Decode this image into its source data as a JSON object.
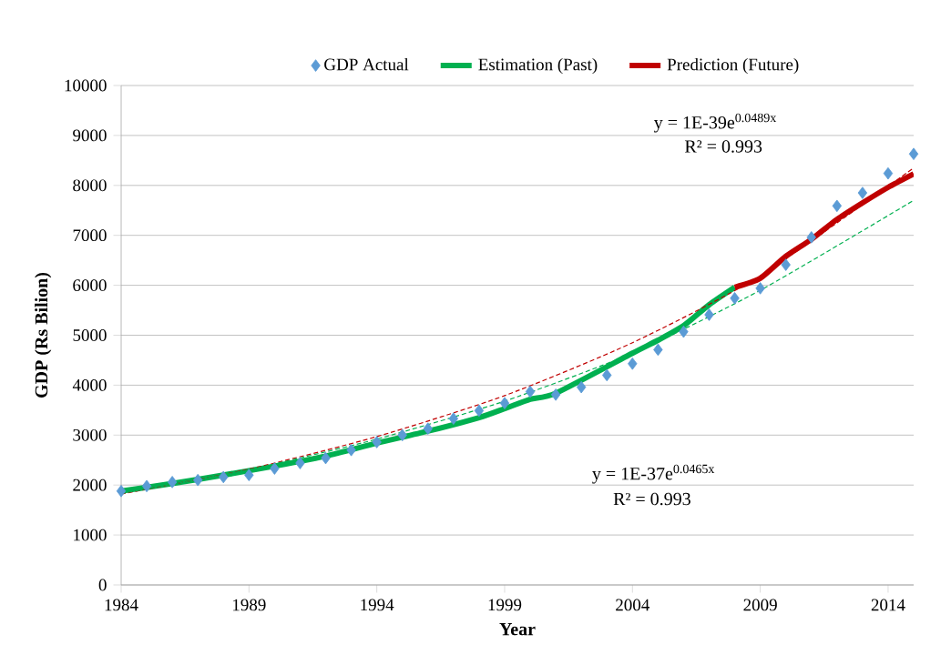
{
  "chart_data": {
    "type": "line",
    "xlabel": "Year",
    "ylabel": "GDP (Rs Bilion)",
    "x": [
      1984,
      1985,
      1986,
      1987,
      1988,
      1989,
      1990,
      1991,
      1992,
      1993,
      1994,
      1995,
      1996,
      1997,
      1998,
      1999,
      2000,
      2001,
      2002,
      2003,
      2004,
      2005,
      2006,
      2007,
      2008,
      2009,
      2010,
      2011,
      2012,
      2013,
      2014,
      2015
    ],
    "series": [
      {
        "name": "GDP Actual",
        "type": "scatter",
        "marker": "diamond",
        "color": "#5b9bd5",
        "values": [
          1880,
          1980,
          2060,
          2100,
          2160,
          2200,
          2330,
          2440,
          2540,
          2700,
          2860,
          3000,
          3130,
          3330,
          3490,
          3640,
          3870,
          3810,
          3960,
          4200,
          4430,
          4710,
          5070,
          5410,
          5740,
          5940,
          6410,
          6960,
          7590,
          7850,
          8240,
          8630
        ]
      },
      {
        "name": "Estimation (Past)",
        "color": "#00b050",
        "x": [
          1984,
          1986,
          1988,
          1990,
          1992,
          1994,
          1996,
          1998,
          1999,
          2000,
          2001,
          2004,
          2005,
          2006,
          2007,
          2008
        ],
        "values": [
          1880,
          2030,
          2200,
          2380,
          2580,
          2840,
          3080,
          3350,
          3530,
          3720,
          3840,
          4640,
          4900,
          5190,
          5610,
          5960
        ]
      },
      {
        "name": "Prediction (Future)",
        "color": "#c00000",
        "x": [
          2008,
          2009,
          2010,
          2011,
          2012,
          2013,
          2014,
          2015
        ],
        "values": [
          5960,
          6140,
          6580,
          6920,
          7320,
          7650,
          7960,
          8230
        ]
      },
      {
        "line_style": "dashed",
        "color": "#c00000",
        "x": [
          1984,
          1989,
          1994,
          1999,
          2004,
          2009,
          2015
        ],
        "values": [
          1820,
          2320,
          2970,
          3790,
          4850,
          6190,
          8350
        ]
      },
      {
        "line_style": "dashed",
        "color": "#00b050",
        "x": [
          1984,
          1989,
          1994,
          1999,
          2004,
          2009,
          2015
        ],
        "values": [
          1830,
          2310,
          2920,
          3680,
          4640,
          5900,
          7700
        ]
      }
    ],
    "xlim": [
      1984,
      2015
    ],
    "xticks": [
      1984,
      1989,
      1994,
      1999,
      2004,
      2009,
      2014
    ],
    "ylim": [
      0,
      10000
    ],
    "yticks": [
      0,
      1000,
      2000,
      3000,
      4000,
      5000,
      6000,
      7000,
      8000,
      9000,
      10000
    ],
    "grid": "y",
    "legend": "top",
    "annotations": [
      "y = 1E-39e$^{0.0489x}$",
      "R² = 0.993",
      "y = 1E-37e$^{0.0465x}$",
      "R² = 0.993"
    ]
  }
}
